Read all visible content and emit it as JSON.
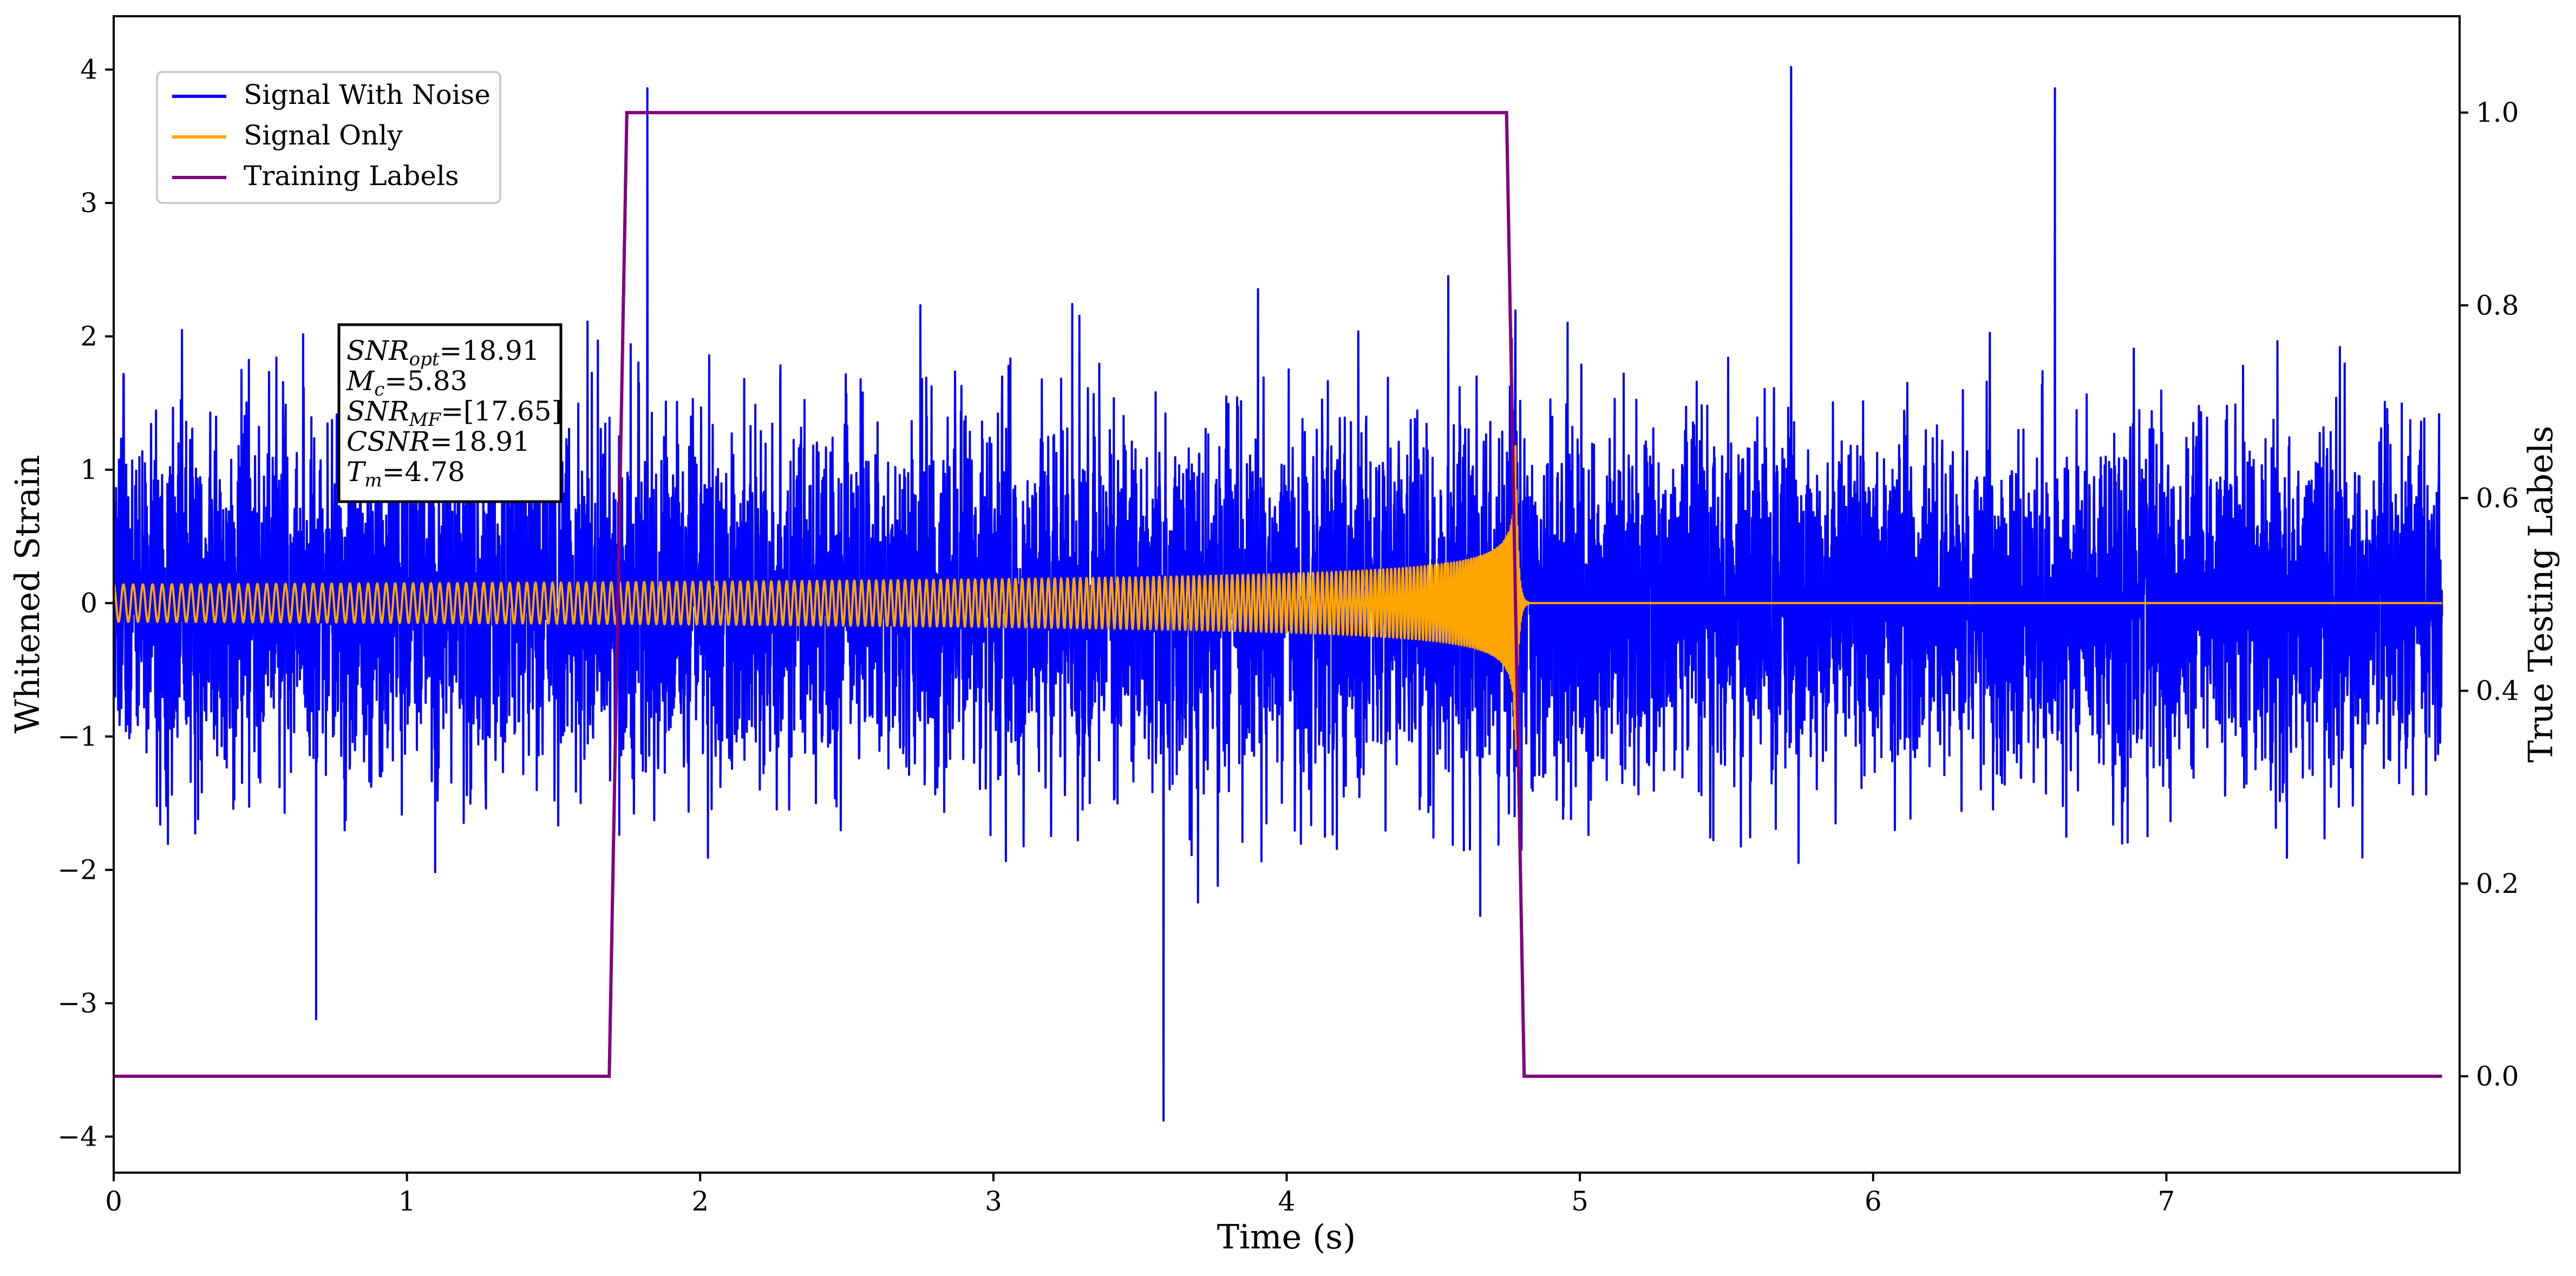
{
  "chart_data": {
    "type": "line",
    "xlabel": "Time (s)",
    "ylabel_left": "Whitened Strain",
    "ylabel_right": "True Testing Labels",
    "xlim": [
      0,
      8.0
    ],
    "ylim_left": [
      -4.27,
      4.4
    ],
    "ylim_right": [
      -0.1,
      1.1
    ],
    "x_ticks": [
      0,
      1,
      2,
      3,
      4,
      5,
      6,
      7
    ],
    "y_left_ticks": [
      -4,
      -3,
      -2,
      -1,
      0,
      1,
      2,
      3,
      4
    ],
    "y_right_ticks": [
      0.0,
      0.2,
      0.4,
      0.6,
      0.8,
      1.0
    ],
    "grid": false,
    "legend": {
      "location": "upper-left",
      "entries": [
        {
          "label": "Signal With Noise",
          "color": "#0000ff"
        },
        {
          "label": "Signal Only",
          "color": "#ffa500"
        },
        {
          "label": "Training Labels",
          "color": "#800080"
        }
      ]
    },
    "annotation": {
      "lines": [
        {
          "symbol": "SNR",
          "sub": "opt",
          "rest": "=18.91"
        },
        {
          "symbol": "M",
          "sub": "c",
          "rest": "=5.83"
        },
        {
          "symbol": "SNR",
          "sub": "MF",
          "rest": "=[17.65]"
        },
        {
          "symbol": "CSNR",
          "sub": "",
          "rest": "=18.91"
        },
        {
          "symbol": "T",
          "sub": "m",
          "rest": "=4.78"
        }
      ]
    },
    "series": [
      {
        "name": "Signal With Noise",
        "axis": "left",
        "color": "#0000ff",
        "noise_std": 0.65,
        "notable_peaks": [
          {
            "x": 1.82,
            "y": 3.86
          },
          {
            "x": 3.58,
            "y": -3.88
          },
          {
            "x": 5.72,
            "y": 4.02
          },
          {
            "x": 6.62,
            "y": 3.86
          },
          {
            "x": 0.69,
            "y": -3.12
          }
        ]
      },
      {
        "name": "Signal Only",
        "axis": "left",
        "color": "#ffa500",
        "merger_time": 4.78,
        "initial_amplitude": 0.14,
        "peak_amplitude": 1.5,
        "initial_frequency_hz": 30,
        "post_merger_value": 0.0
      },
      {
        "name": "Training Labels",
        "axis": "right",
        "color": "#800080",
        "points": [
          [
            0.0,
            0.0
          ],
          [
            1.69,
            0.0
          ],
          [
            1.75,
            1.0
          ],
          [
            4.75,
            1.0
          ],
          [
            4.81,
            0.0
          ],
          [
            7.94,
            0.0
          ]
        ]
      }
    ]
  },
  "colors": {
    "noise": "#0000ff",
    "signal": "#ffa500",
    "labels": "#800080",
    "axis": "#000000",
    "background": "#ffffff"
  }
}
